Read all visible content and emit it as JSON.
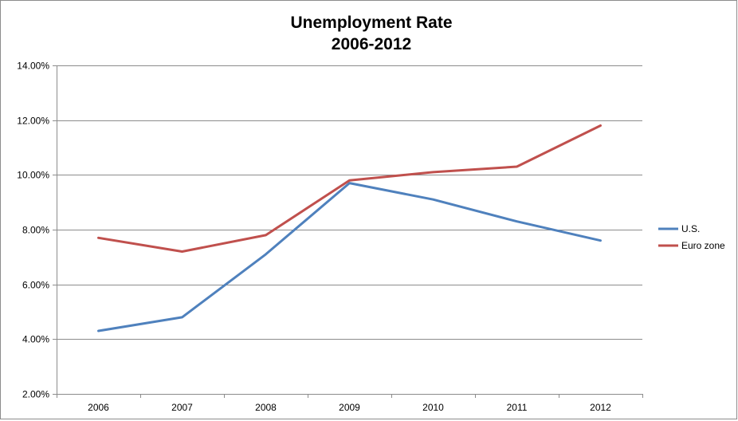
{
  "chart_data": {
    "type": "line",
    "title": "Unemployment Rate",
    "subtitle": "2006-2012",
    "xlabel": "",
    "ylabel": "",
    "categories": [
      "2006",
      "2007",
      "2008",
      "2009",
      "2010",
      "2011",
      "2012"
    ],
    "ylim": [
      2,
      14
    ],
    "yticks": [
      "2.00%",
      "4.00%",
      "6.00%",
      "8.00%",
      "10.00%",
      "12.00%",
      "14.00%"
    ],
    "grid": true,
    "legend_position": "right",
    "series": [
      {
        "name": "U.S.",
        "color": "#4F81BD",
        "values": [
          4.3,
          4.8,
          7.1,
          9.7,
          9.1,
          8.3,
          7.6
        ]
      },
      {
        "name": "Euro zone",
        "color": "#C0504D",
        "values": [
          7.7,
          7.2,
          7.8,
          9.8,
          10.1,
          10.3,
          11.8
        ]
      }
    ]
  }
}
